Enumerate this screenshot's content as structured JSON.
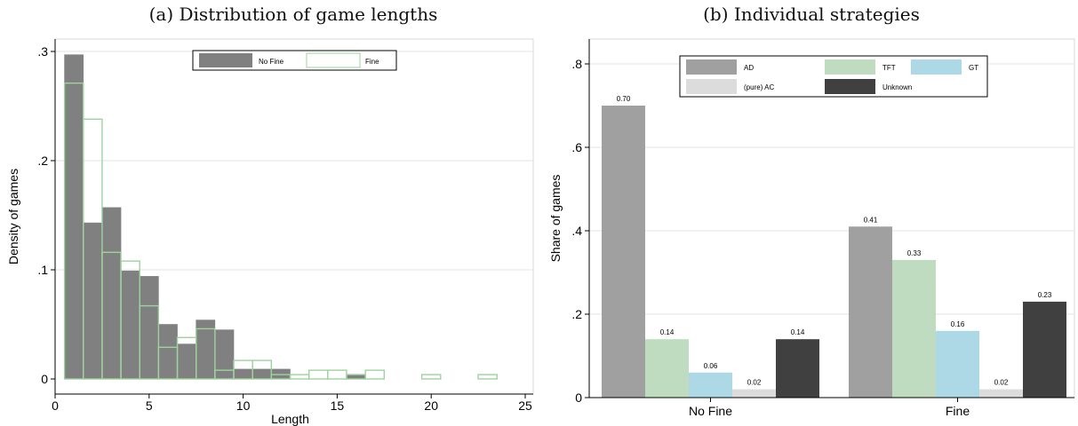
{
  "chart_data": [
    {
      "type": "bar",
      "subtype": "histogram",
      "title": "(a) Distribution of game lengths",
      "xlabel": "Length",
      "ylabel": "Density of games",
      "xlim": [
        0,
        25
      ],
      "ylim": [
        0,
        0.3
      ],
      "x_ticks": [
        "0",
        "5",
        "10",
        "15",
        "20",
        "25"
      ],
      "y_ticks": [
        ".3",
        ".2",
        ".1",
        "0"
      ],
      "grid": "horizontal",
      "legend_position": "top-center",
      "bin_edges": [
        0.5,
        1.5,
        2.5,
        3.5,
        4.5,
        5.5,
        6.5,
        7.5,
        8.5,
        9.5,
        10.5,
        11.5,
        12.5,
        13.5,
        14.5,
        15.5,
        16.5,
        17.5,
        18.5,
        19.5,
        20.5,
        21.5,
        22.5,
        23.5
      ],
      "series": [
        {
          "name": "No Fine",
          "color": "#808080",
          "style": "filled",
          "values": [
            0.297,
            0.143,
            0.157,
            0.099,
            0.094,
            0.05,
            0.032,
            0.054,
            0.045,
            0.009,
            0.009,
            0.009,
            0,
            0,
            0,
            0.004,
            0,
            0,
            0,
            0,
            0,
            0,
            0
          ]
        },
        {
          "name": "Fine",
          "color": "#9ed39e",
          "style": "outline",
          "values": [
            0.271,
            0.238,
            0.116,
            0.108,
            0.067,
            0.029,
            0.038,
            0.046,
            0.008,
            0.017,
            0.017,
            0.004,
            0.004,
            0.008,
            0.008,
            0.004,
            0.008,
            0,
            0,
            0.004,
            0,
            0,
            0.004
          ]
        }
      ]
    },
    {
      "type": "bar",
      "title": "(b) Individual strategies",
      "xlabel": "",
      "ylabel": "Share of games",
      "categories": [
        "No Fine",
        "Fine"
      ],
      "ylim": [
        0,
        0.8
      ],
      "y_ticks": [
        "0",
        ".2",
        ".4",
        ".6",
        ".8"
      ],
      "grid": "horizontal",
      "legend_position": "top-center",
      "series": [
        {
          "name": "AD",
          "color": "#a0a0a0",
          "values": [
            0.7,
            0.41
          ],
          "labels": [
            "0.70",
            "0.41"
          ]
        },
        {
          "name": "TFT",
          "color": "#bfdcc0",
          "values": [
            0.14,
            0.33
          ],
          "labels": [
            "0.14",
            "0.33"
          ]
        },
        {
          "name": "GT",
          "color": "#add8e6",
          "values": [
            0.06,
            0.16
          ],
          "labels": [
            "0.06",
            "0.16"
          ]
        },
        {
          "name": "(pure) AC",
          "color": "#dcdcdc",
          "values": [
            0.02,
            0.02
          ],
          "labels": [
            "0.02",
            "0.02"
          ]
        },
        {
          "name": "Unknown",
          "color": "#404040",
          "values": [
            0.14,
            0.23
          ],
          "labels": [
            "0.14",
            "0.23"
          ]
        }
      ]
    }
  ]
}
